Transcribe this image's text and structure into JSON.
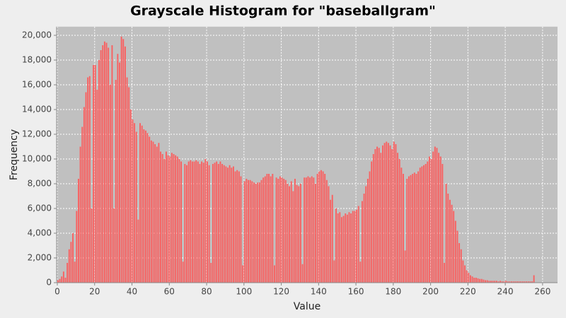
{
  "chart_data": {
    "type": "histogram",
    "title": "Grayscale Histogram for \"baseballgram\"",
    "x_label": "Value",
    "y_label": "Frequency",
    "color": "#ff5555",
    "grid": true,
    "xlim": [
      0,
      268
    ],
    "ylim": [
      0,
      20700
    ],
    "xticks": [
      0,
      20,
      40,
      60,
      80,
      100,
      120,
      140,
      160,
      180,
      200,
      220,
      240,
      260
    ],
    "yticks": [
      0,
      {
        "value": 2000,
        "label": "2,000"
      },
      {
        "value": 4000,
        "label": "4,000"
      },
      {
        "value": 6000,
        "label": "6,000"
      },
      {
        "value": 8000,
        "label": "8,000"
      },
      {
        "value": 10000,
        "label": "10,000"
      },
      {
        "value": 12000,
        "label": "12,000"
      },
      {
        "value": 14000,
        "label": "14,000"
      },
      {
        "value": 16000,
        "label": "16,000"
      },
      {
        "value": 18000,
        "label": "18,000"
      },
      {
        "value": 20000,
        "label": "20,000"
      }
    ],
    "bins": [
      0,
      1,
      2,
      3,
      4,
      5,
      6,
      7,
      8,
      9,
      10,
      11,
      12,
      13,
      14,
      15,
      16,
      17,
      18,
      19,
      20,
      21,
      22,
      23,
      24,
      25,
      26,
      27,
      28,
      29,
      30,
      31,
      32,
      33,
      34,
      35,
      36,
      37,
      38,
      39,
      40,
      41,
      42,
      43,
      44,
      45,
      46,
      47,
      48,
      49,
      50,
      51,
      52,
      53,
      54,
      55,
      56,
      57,
      58,
      59,
      60,
      61,
      62,
      63,
      64,
      65,
      66,
      67,
      68,
      69,
      70,
      71,
      72,
      73,
      74,
      75,
      76,
      77,
      78,
      79,
      80,
      81,
      82,
      83,
      84,
      85,
      86,
      87,
      88,
      89,
      90,
      91,
      92,
      93,
      94,
      95,
      96,
      97,
      98,
      99,
      100,
      101,
      102,
      103,
      104,
      105,
      106,
      107,
      108,
      109,
      110,
      111,
      112,
      113,
      114,
      115,
      116,
      117,
      118,
      119,
      120,
      121,
      122,
      123,
      124,
      125,
      126,
      127,
      128,
      129,
      130,
      131,
      132,
      133,
      134,
      135,
      136,
      137,
      138,
      139,
      140,
      141,
      142,
      143,
      144,
      145,
      146,
      147,
      148,
      149,
      150,
      151,
      152,
      153,
      154,
      155,
      156,
      157,
      158,
      159,
      160,
      161,
      162,
      163,
      164,
      165,
      166,
      167,
      168,
      169,
      170,
      171,
      172,
      173,
      174,
      175,
      176,
      177,
      178,
      179,
      180,
      181,
      182,
      183,
      184,
      185,
      186,
      187,
      188,
      189,
      190,
      191,
      192,
      193,
      194,
      195,
      196,
      197,
      198,
      199,
      200,
      201,
      202,
      203,
      204,
      205,
      206,
      207,
      208,
      209,
      210,
      211,
      212,
      213,
      214,
      215,
      216,
      217,
      218,
      219,
      220,
      221,
      222,
      223,
      224,
      225,
      226,
      227,
      228,
      229,
      230,
      231,
      232,
      233,
      234,
      235,
      236,
      237,
      238,
      239,
      240,
      241,
      242,
      243,
      244,
      245,
      246,
      247,
      248,
      249,
      250,
      251,
      252,
      253,
      254,
      255,
      256
    ],
    "values": [
      200,
      300,
      500,
      900,
      400,
      1600,
      2700,
      3300,
      4000,
      1700,
      5800,
      8400,
      11000,
      12600,
      14200,
      15400,
      16600,
      16700,
      6000,
      17600,
      17600,
      15600,
      18000,
      18800,
      19200,
      19500,
      19400,
      19000,
      16000,
      19200,
      6000,
      16400,
      18500,
      17800,
      19900,
      19700,
      19100,
      16600,
      15800,
      14000,
      13200,
      12900,
      12200,
      5100,
      12900,
      12700,
      12400,
      12300,
      12100,
      11800,
      11500,
      11400,
      11200,
      11000,
      11300,
      10600,
      10400,
      10000,
      10600,
      10300,
      10200,
      10500,
      10400,
      10300,
      10200,
      10000,
      9800,
      1700,
      9600,
      9500,
      9800,
      9900,
      9800,
      9800,
      9900,
      9800,
      9600,
      9800,
      9700,
      10000,
      9800,
      9500,
      1600,
      9600,
      9700,
      9800,
      9600,
      9800,
      9600,
      9500,
      9400,
      9300,
      9500,
      9300,
      9400,
      9000,
      9100,
      9000,
      8600,
      1400,
      8200,
      8400,
      8300,
      8300,
      8200,
      8100,
      8000,
      8100,
      8100,
      8300,
      8500,
      8600,
      8800,
      8800,
      8600,
      8800,
      1400,
      8500,
      8400,
      8600,
      8500,
      8400,
      8300,
      8000,
      7800,
      8200,
      7400,
      8400,
      7900,
      7800,
      8000,
      1500,
      8500,
      8500,
      8600,
      8500,
      8600,
      8500,
      8000,
      8800,
      9000,
      9100,
      9000,
      8800,
      8300,
      7800,
      6700,
      7100,
      1800,
      6000,
      5600,
      5700,
      5300,
      5400,
      5600,
      5500,
      5700,
      5600,
      5800,
      5800,
      5900,
      6200,
      1700,
      6600,
      7200,
      7800,
      8400,
      9000,
      9800,
      10400,
      10800,
      11000,
      10900,
      10500,
      11100,
      11300,
      11400,
      11300,
      11100,
      10800,
      11400,
      11200,
      10500,
      10000,
      9300,
      8800,
      2600,
      8400,
      8600,
      8700,
      8800,
      8900,
      8800,
      9000,
      9300,
      9400,
      9500,
      9600,
      9800,
      10200,
      10000,
      10600,
      11000,
      10900,
      10500,
      10200,
      9600,
      1600,
      8000,
      7200,
      6700,
      6300,
      5800,
      5000,
      4200,
      3200,
      2700,
      1800,
      1400,
      1000,
      800,
      600,
      500,
      400,
      400,
      350,
      300,
      300,
      250,
      200,
      200,
      150,
      150,
      150,
      150,
      150,
      100,
      150,
      100,
      100,
      150,
      100,
      100,
      100,
      100,
      100,
      100,
      100,
      100,
      100,
      100,
      100,
      100,
      100,
      100,
      600
    ]
  }
}
